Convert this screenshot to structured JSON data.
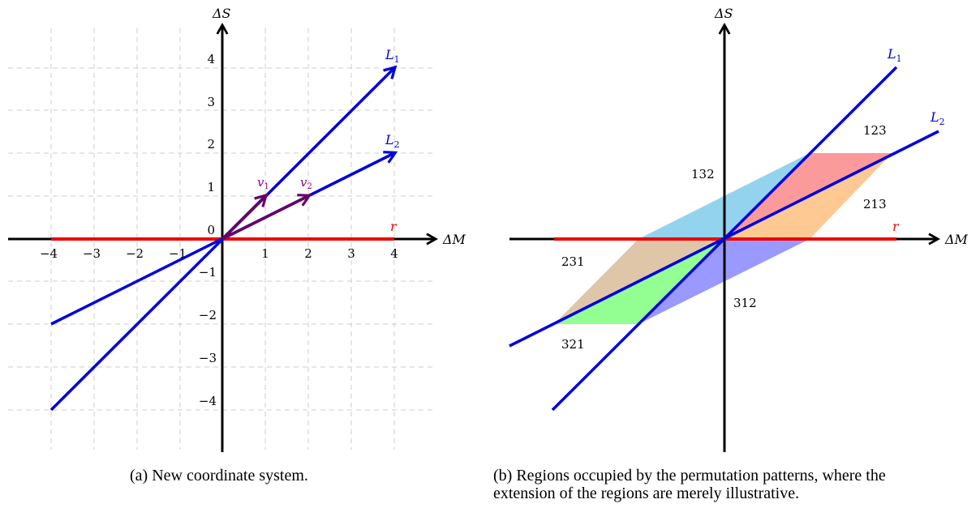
{
  "figure_a": {
    "caption": "(a) New coordinate system.",
    "axis_x_label": "ΔM",
    "axis_y_label": "ΔS",
    "x_ticks": [
      "−4",
      "−3",
      "−2",
      "−1",
      "1",
      "2",
      "3",
      "4"
    ],
    "y_ticks_pos": [
      "1",
      "2",
      "3",
      "4"
    ],
    "y_ticks_neg": [
      "−1",
      "−2",
      "−3",
      "−4"
    ],
    "origin_label": "0",
    "line_L1_label": "L",
    "line_L1_sub": "1",
    "line_L2_label": "L",
    "line_L2_sub": "2",
    "ray_r_label": "r",
    "vector_v1_label": "v",
    "vector_v1_sub": "1",
    "vector_v2_label": "v",
    "vector_v2_sub": "2",
    "L1_direction": [
      1,
      1
    ],
    "L2_direction": [
      2,
      1
    ],
    "v1": [
      1,
      1
    ],
    "v2": [
      2,
      1
    ],
    "axis_range": [
      -4,
      4
    ],
    "grid": true
  },
  "figure_b": {
    "caption_line1": "(b) Regions occupied by the permutation patterns, where the",
    "caption_line2": "extension of the regions are merely illustrative.",
    "axis_x_label": "ΔM",
    "axis_y_label": "ΔS",
    "line_L1_label": "L",
    "line_L1_sub": "1",
    "line_L2_label": "L",
    "line_L2_sub": "2",
    "ray_r_label": "r",
    "regions": [
      {
        "label": "123",
        "color": "#f87878"
      },
      {
        "label": "132",
        "color": "#87ceeb"
      },
      {
        "label": "213",
        "color": "#ffc080"
      },
      {
        "label": "231",
        "color": "#dcc0a0"
      },
      {
        "label": "312",
        "color": "#8080ff"
      },
      {
        "label": "321",
        "color": "#80ff80"
      }
    ]
  },
  "colors": {
    "line_blue": "#0000dd",
    "ray_red": "#ee0000",
    "vector_purple": "#660066",
    "grid": "#cccccc",
    "axis": "#000000"
  }
}
